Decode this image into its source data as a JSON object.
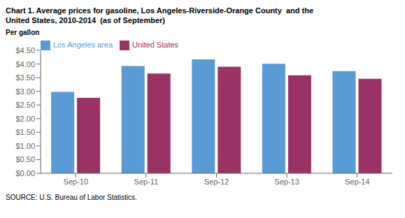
{
  "chart_data": {
    "type": "bar",
    "title": "Chart 1. Average prices for gasoline, Los Angeles-Riverside-Orange County  and the",
    "subtitle": "United States, 2010-2014  (as of September)",
    "y_label": "Per gallon",
    "annotations": [
      "SOURCE: U.S. Bureau of Labor Statistics."
    ],
    "categories": [
      "Sep-10",
      "Sep-11",
      "Sep-12",
      "Sep-13",
      "Sep-14"
    ],
    "series": [
      {
        "name": "Los Angeles area",
        "color": "#5B9BD5",
        "values": [
          2.98,
          3.93,
          4.17,
          4.01,
          3.74
        ]
      },
      {
        "name": "United States",
        "color": "#993366",
        "values": [
          2.76,
          3.65,
          3.9,
          3.59,
          3.46
        ]
      }
    ],
    "ylim": [
      0,
      4.5
    ],
    "yticks": [
      {
        "value": 0.0,
        "label": "$0.00"
      },
      {
        "value": 0.5,
        "label": "$0.50"
      },
      {
        "value": 1.0,
        "label": "$1.00"
      },
      {
        "value": 1.5,
        "label": "$1.50"
      },
      {
        "value": 2.0,
        "label": "$2.00"
      },
      {
        "value": 2.5,
        "label": "$2.50"
      },
      {
        "value": 3.0,
        "label": "$3.00"
      },
      {
        "value": 3.5,
        "label": "$3.50"
      },
      {
        "value": 4.0,
        "label": "$4.00"
      },
      {
        "value": 4.5,
        "label": "$4.50"
      }
    ],
    "grid": false,
    "legend": "upper left"
  }
}
